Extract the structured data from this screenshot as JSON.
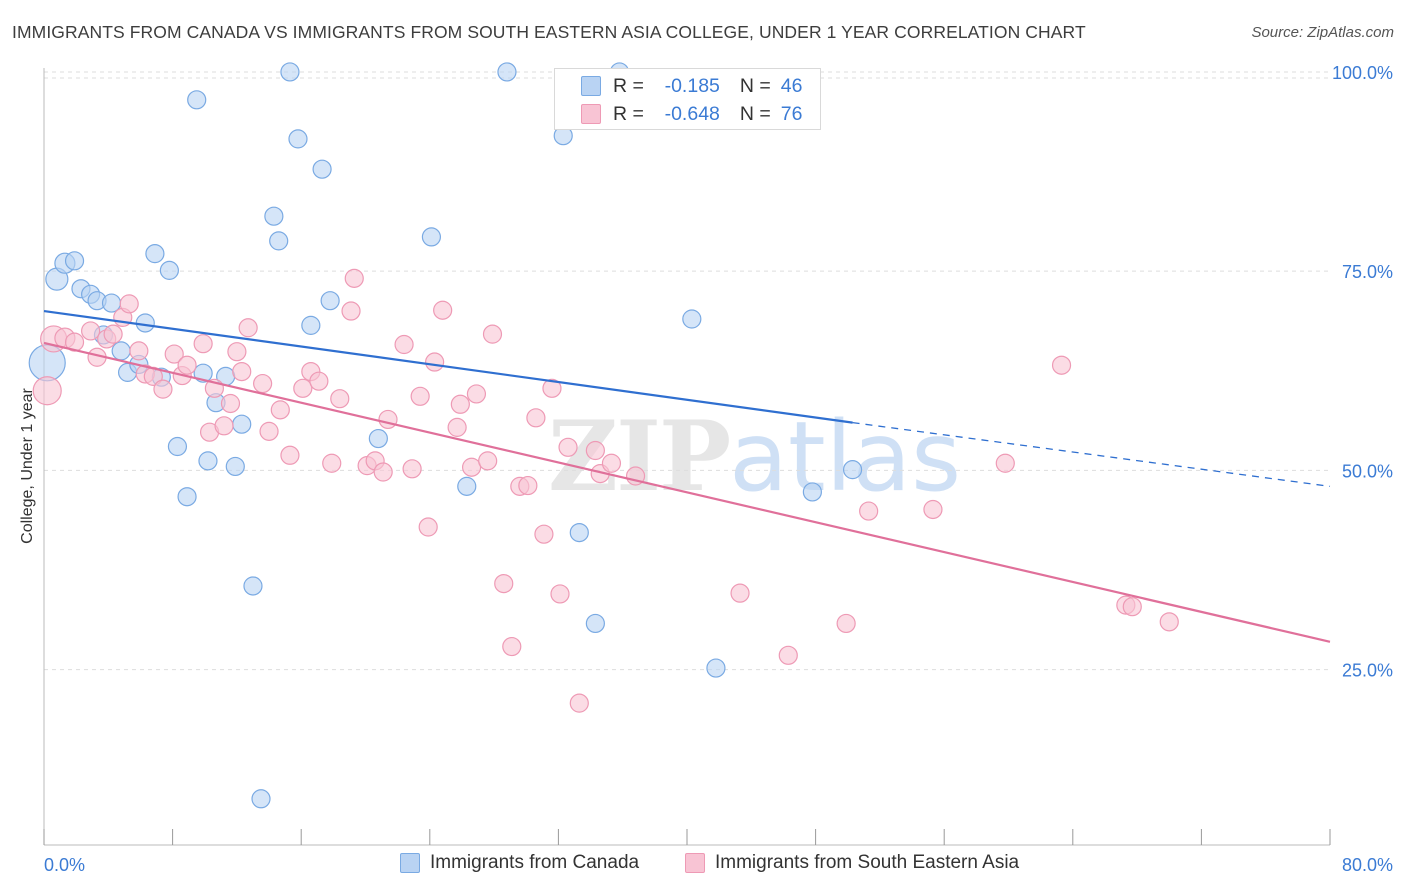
{
  "title": "IMMIGRANTS FROM CANADA VS IMMIGRANTS FROM SOUTH EASTERN ASIA COLLEGE, UNDER 1 YEAR CORRELATION CHART",
  "source": "Source: ZipAtlas.com",
  "watermark": {
    "zip": "ZIP",
    "atlas": "atlas"
  },
  "stats": {
    "r_label": "R =",
    "n_label": "N =",
    "canada": {
      "r": "-0.185",
      "n": "46"
    },
    "sea": {
      "r": "-0.648",
      "n": "76"
    }
  },
  "legend": {
    "canada": "Immigrants from Canada",
    "sea": "Immigrants from South Eastern Asia"
  },
  "colors": {
    "canada_fill": "#b9d3f3",
    "canada_stroke": "#7aaae3",
    "canada_line": "#2f6fd0",
    "sea_fill": "#f8c4d4",
    "sea_stroke": "#ee9ab5",
    "sea_line": "#e0709a",
    "axis_label": "#3b7bd4",
    "grid": "#dddddd"
  },
  "chart_data": {
    "type": "scatter",
    "title": "IMMIGRANTS FROM CANADA VS IMMIGRANTS FROM SOUTH EASTERN ASIA COLLEGE, UNDER 1 YEAR CORRELATION CHART",
    "xlabel": "",
    "ylabel": "College, Under 1 year",
    "xlim": [
      0,
      80
    ],
    "ylim": [
      3,
      102
    ],
    "x_tick_labels": [
      "0.0%",
      "80.0%"
    ],
    "y_ticks": [
      25,
      50,
      75,
      100
    ],
    "y_tick_labels": [
      "25.0%",
      "50.0%",
      "75.0%",
      "100.0%"
    ],
    "grid": "horizontal dashed",
    "legend_position": "bottom-center",
    "series": [
      {
        "name": "Immigrants from Canada",
        "r": -0.185,
        "n": 46,
        "trend": {
          "x0": 0,
          "y0": 70.0,
          "x1": 50.3,
          "y1": 56.0,
          "dashed_to_x": 80,
          "dashed_to_y": 48.0
        },
        "points": [
          [
            0.2,
            63.5,
            18
          ],
          [
            0.8,
            74.0,
            11
          ],
          [
            1.3,
            76.0,
            10
          ],
          [
            1.9,
            76.3,
            9
          ],
          [
            2.3,
            72.8,
            9
          ],
          [
            2.9,
            72.1,
            9
          ],
          [
            3.3,
            71.3,
            9
          ],
          [
            3.7,
            67.0,
            9
          ],
          [
            4.2,
            71.0,
            9
          ],
          [
            4.8,
            65.0,
            9
          ],
          [
            5.2,
            62.3,
            9
          ],
          [
            5.9,
            63.3,
            9
          ],
          [
            6.3,
            68.5,
            9
          ],
          [
            6.9,
            77.2,
            9
          ],
          [
            7.3,
            61.7,
            9
          ],
          [
            7.8,
            75.1,
            9
          ],
          [
            8.3,
            53.0,
            9
          ],
          [
            8.9,
            46.7,
            9
          ],
          [
            9.5,
            96.5,
            9
          ],
          [
            9.9,
            62.2,
            9
          ],
          [
            10.2,
            51.2,
            9
          ],
          [
            10.7,
            58.5,
            9
          ],
          [
            11.3,
            61.8,
            9
          ],
          [
            11.9,
            50.5,
            9
          ],
          [
            12.3,
            55.8,
            9
          ],
          [
            13.0,
            35.5,
            9
          ],
          [
            13.5,
            8.8,
            9
          ],
          [
            14.3,
            81.9,
            9
          ],
          [
            14.6,
            78.8,
            9
          ],
          [
            15.3,
            100.0,
            9
          ],
          [
            15.8,
            91.6,
            9
          ],
          [
            16.6,
            68.2,
            9
          ],
          [
            17.3,
            87.8,
            9
          ],
          [
            17.8,
            71.3,
            9
          ],
          [
            20.8,
            54.0,
            9
          ],
          [
            24.1,
            79.3,
            9
          ],
          [
            26.3,
            48.0,
            9
          ],
          [
            28.8,
            100.0,
            9
          ],
          [
            32.3,
            92.0,
            9
          ],
          [
            33.3,
            42.2,
            9
          ],
          [
            34.3,
            30.8,
            9
          ],
          [
            35.8,
            100.0,
            9
          ],
          [
            40.3,
            69.0,
            9
          ],
          [
            41.8,
            25.2,
            9
          ],
          [
            47.8,
            47.3,
            9
          ],
          [
            50.3,
            50.1,
            9
          ]
        ]
      },
      {
        "name": "Immigrants from South Eastern Asia",
        "r": -0.648,
        "n": 76,
        "trend": {
          "x0": 0,
          "y0": 66.0,
          "x1": 80,
          "y1": 28.5
        },
        "points": [
          [
            0.2,
            60.0,
            14
          ],
          [
            0.6,
            66.5,
            13
          ],
          [
            1.3,
            66.6,
            10
          ],
          [
            1.9,
            66.1,
            9
          ],
          [
            2.9,
            67.5,
            9
          ],
          [
            3.3,
            64.2,
            9
          ],
          [
            3.9,
            66.5,
            9
          ],
          [
            4.3,
            67.1,
            9
          ],
          [
            4.9,
            69.2,
            9
          ],
          [
            5.3,
            70.9,
            9
          ],
          [
            5.9,
            65.0,
            9
          ],
          [
            6.3,
            62.1,
            9
          ],
          [
            6.8,
            61.8,
            9
          ],
          [
            7.4,
            60.2,
            9
          ],
          [
            8.1,
            64.6,
            9
          ],
          [
            8.6,
            61.9,
            9
          ],
          [
            8.9,
            63.2,
            9
          ],
          [
            9.9,
            65.9,
            9
          ],
          [
            10.3,
            54.8,
            9
          ],
          [
            10.6,
            60.3,
            9
          ],
          [
            11.2,
            55.6,
            9
          ],
          [
            11.6,
            58.4,
            9
          ],
          [
            12.0,
            64.9,
            9
          ],
          [
            12.3,
            62.4,
            9
          ],
          [
            12.7,
            67.9,
            9
          ],
          [
            13.6,
            60.9,
            9
          ],
          [
            14.0,
            54.9,
            9
          ],
          [
            14.7,
            57.6,
            9
          ],
          [
            15.3,
            51.9,
            9
          ],
          [
            16.1,
            60.3,
            9
          ],
          [
            16.6,
            62.4,
            9
          ],
          [
            17.1,
            61.2,
            9
          ],
          [
            17.9,
            50.9,
            9
          ],
          [
            18.4,
            59.0,
            9
          ],
          [
            19.1,
            70.0,
            9
          ],
          [
            19.3,
            74.1,
            9
          ],
          [
            20.1,
            50.6,
            9
          ],
          [
            20.6,
            51.2,
            9
          ],
          [
            21.1,
            49.8,
            9
          ],
          [
            21.4,
            56.4,
            9
          ],
          [
            22.4,
            65.8,
            9
          ],
          [
            22.9,
            50.2,
            9
          ],
          [
            23.4,
            59.3,
            9
          ],
          [
            23.9,
            42.9,
            9
          ],
          [
            24.3,
            63.6,
            9
          ],
          [
            24.8,
            70.1,
            9
          ],
          [
            25.7,
            55.4,
            9
          ],
          [
            25.9,
            58.3,
            9
          ],
          [
            26.6,
            50.4,
            9
          ],
          [
            26.9,
            59.6,
            9
          ],
          [
            27.6,
            51.2,
            9
          ],
          [
            27.9,
            67.1,
            9
          ],
          [
            28.6,
            35.8,
            9
          ],
          [
            29.1,
            27.9,
            9
          ],
          [
            29.6,
            48.0,
            9
          ],
          [
            30.1,
            48.1,
            9
          ],
          [
            30.6,
            56.6,
            9
          ],
          [
            31.1,
            42.0,
            9
          ],
          [
            31.6,
            60.3,
            9
          ],
          [
            32.1,
            34.5,
            9
          ],
          [
            32.6,
            52.9,
            9
          ],
          [
            33.3,
            20.8,
            9
          ],
          [
            34.3,
            52.5,
            9
          ],
          [
            34.6,
            49.6,
            9
          ],
          [
            35.3,
            50.9,
            9
          ],
          [
            36.8,
            49.3,
            9
          ],
          [
            43.3,
            34.6,
            9
          ],
          [
            46.3,
            26.8,
            9
          ],
          [
            49.9,
            30.8,
            9
          ],
          [
            51.3,
            44.9,
            9
          ],
          [
            55.3,
            45.1,
            9
          ],
          [
            59.8,
            50.9,
            9
          ],
          [
            63.3,
            63.2,
            9
          ],
          [
            67.3,
            33.1,
            9
          ],
          [
            67.7,
            32.9,
            9
          ],
          [
            70.0,
            31.0,
            9
          ]
        ]
      }
    ]
  }
}
